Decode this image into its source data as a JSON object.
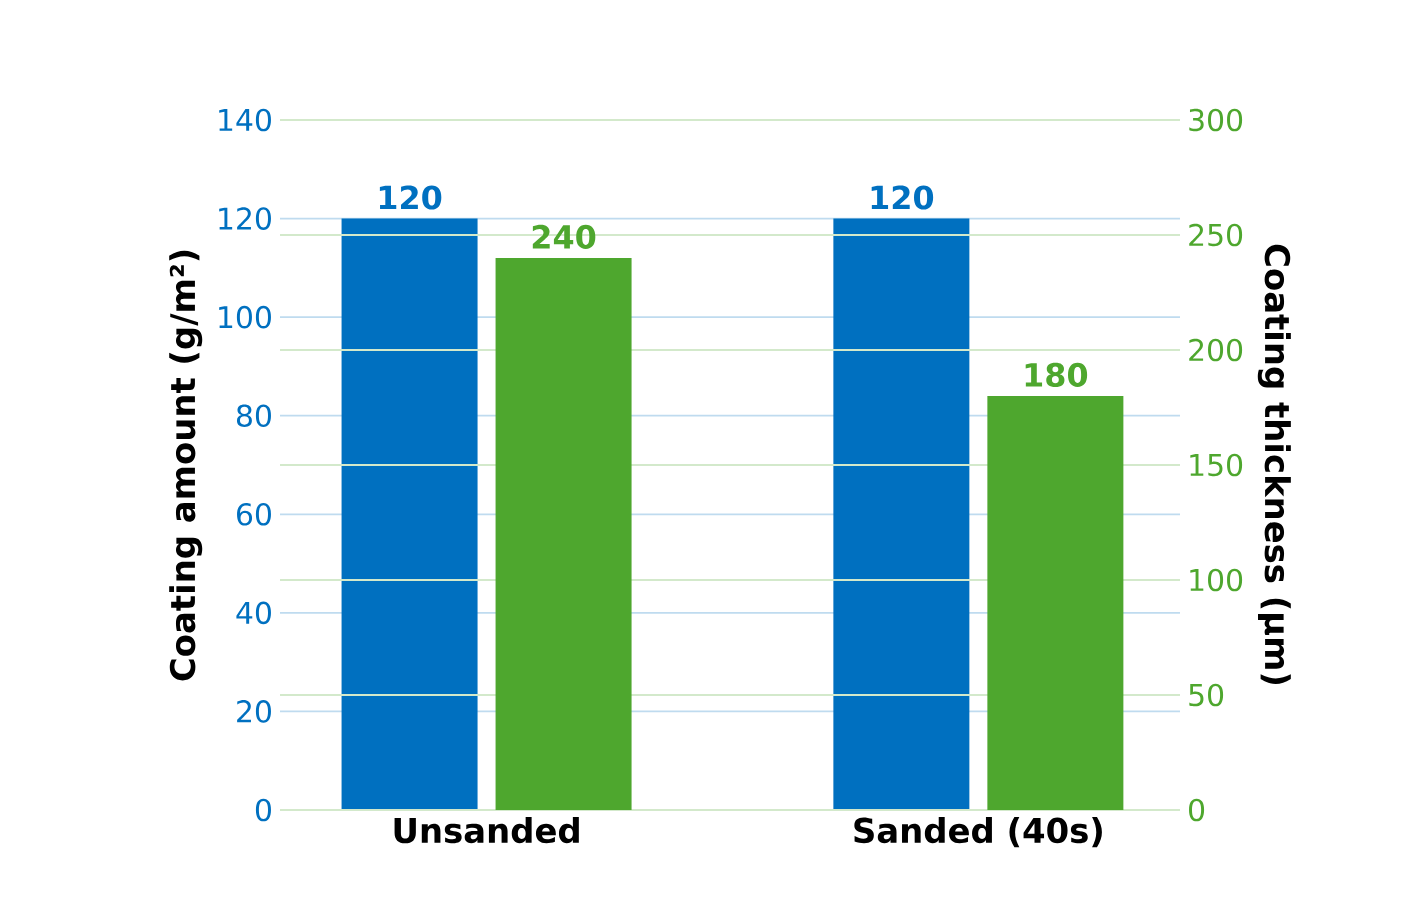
{
  "chart_data": {
    "type": "bar",
    "categories": [
      "Unsanded",
      "Sanded (40s)"
    ],
    "ylabel": "Coating amount (g/m²)",
    "y2label": "Coating thickness (µm)",
    "series": [
      {
        "color": "#0070c0",
        "values": [
          120,
          120
        ]
      },
      {
        "color": "#4ea72e",
        "values": [
          240,
          180
        ],
        "axis": "y2"
      }
    ],
    "ylim": [
      0,
      140
    ],
    "yticks": [
      0,
      20,
      40,
      60,
      80,
      100,
      120,
      140
    ],
    "y2lim": [
      0,
      300
    ],
    "y2ticks": [
      0,
      50,
      100,
      150,
      200,
      250,
      300
    ],
    "grid": true,
    "data_labels": true
  }
}
